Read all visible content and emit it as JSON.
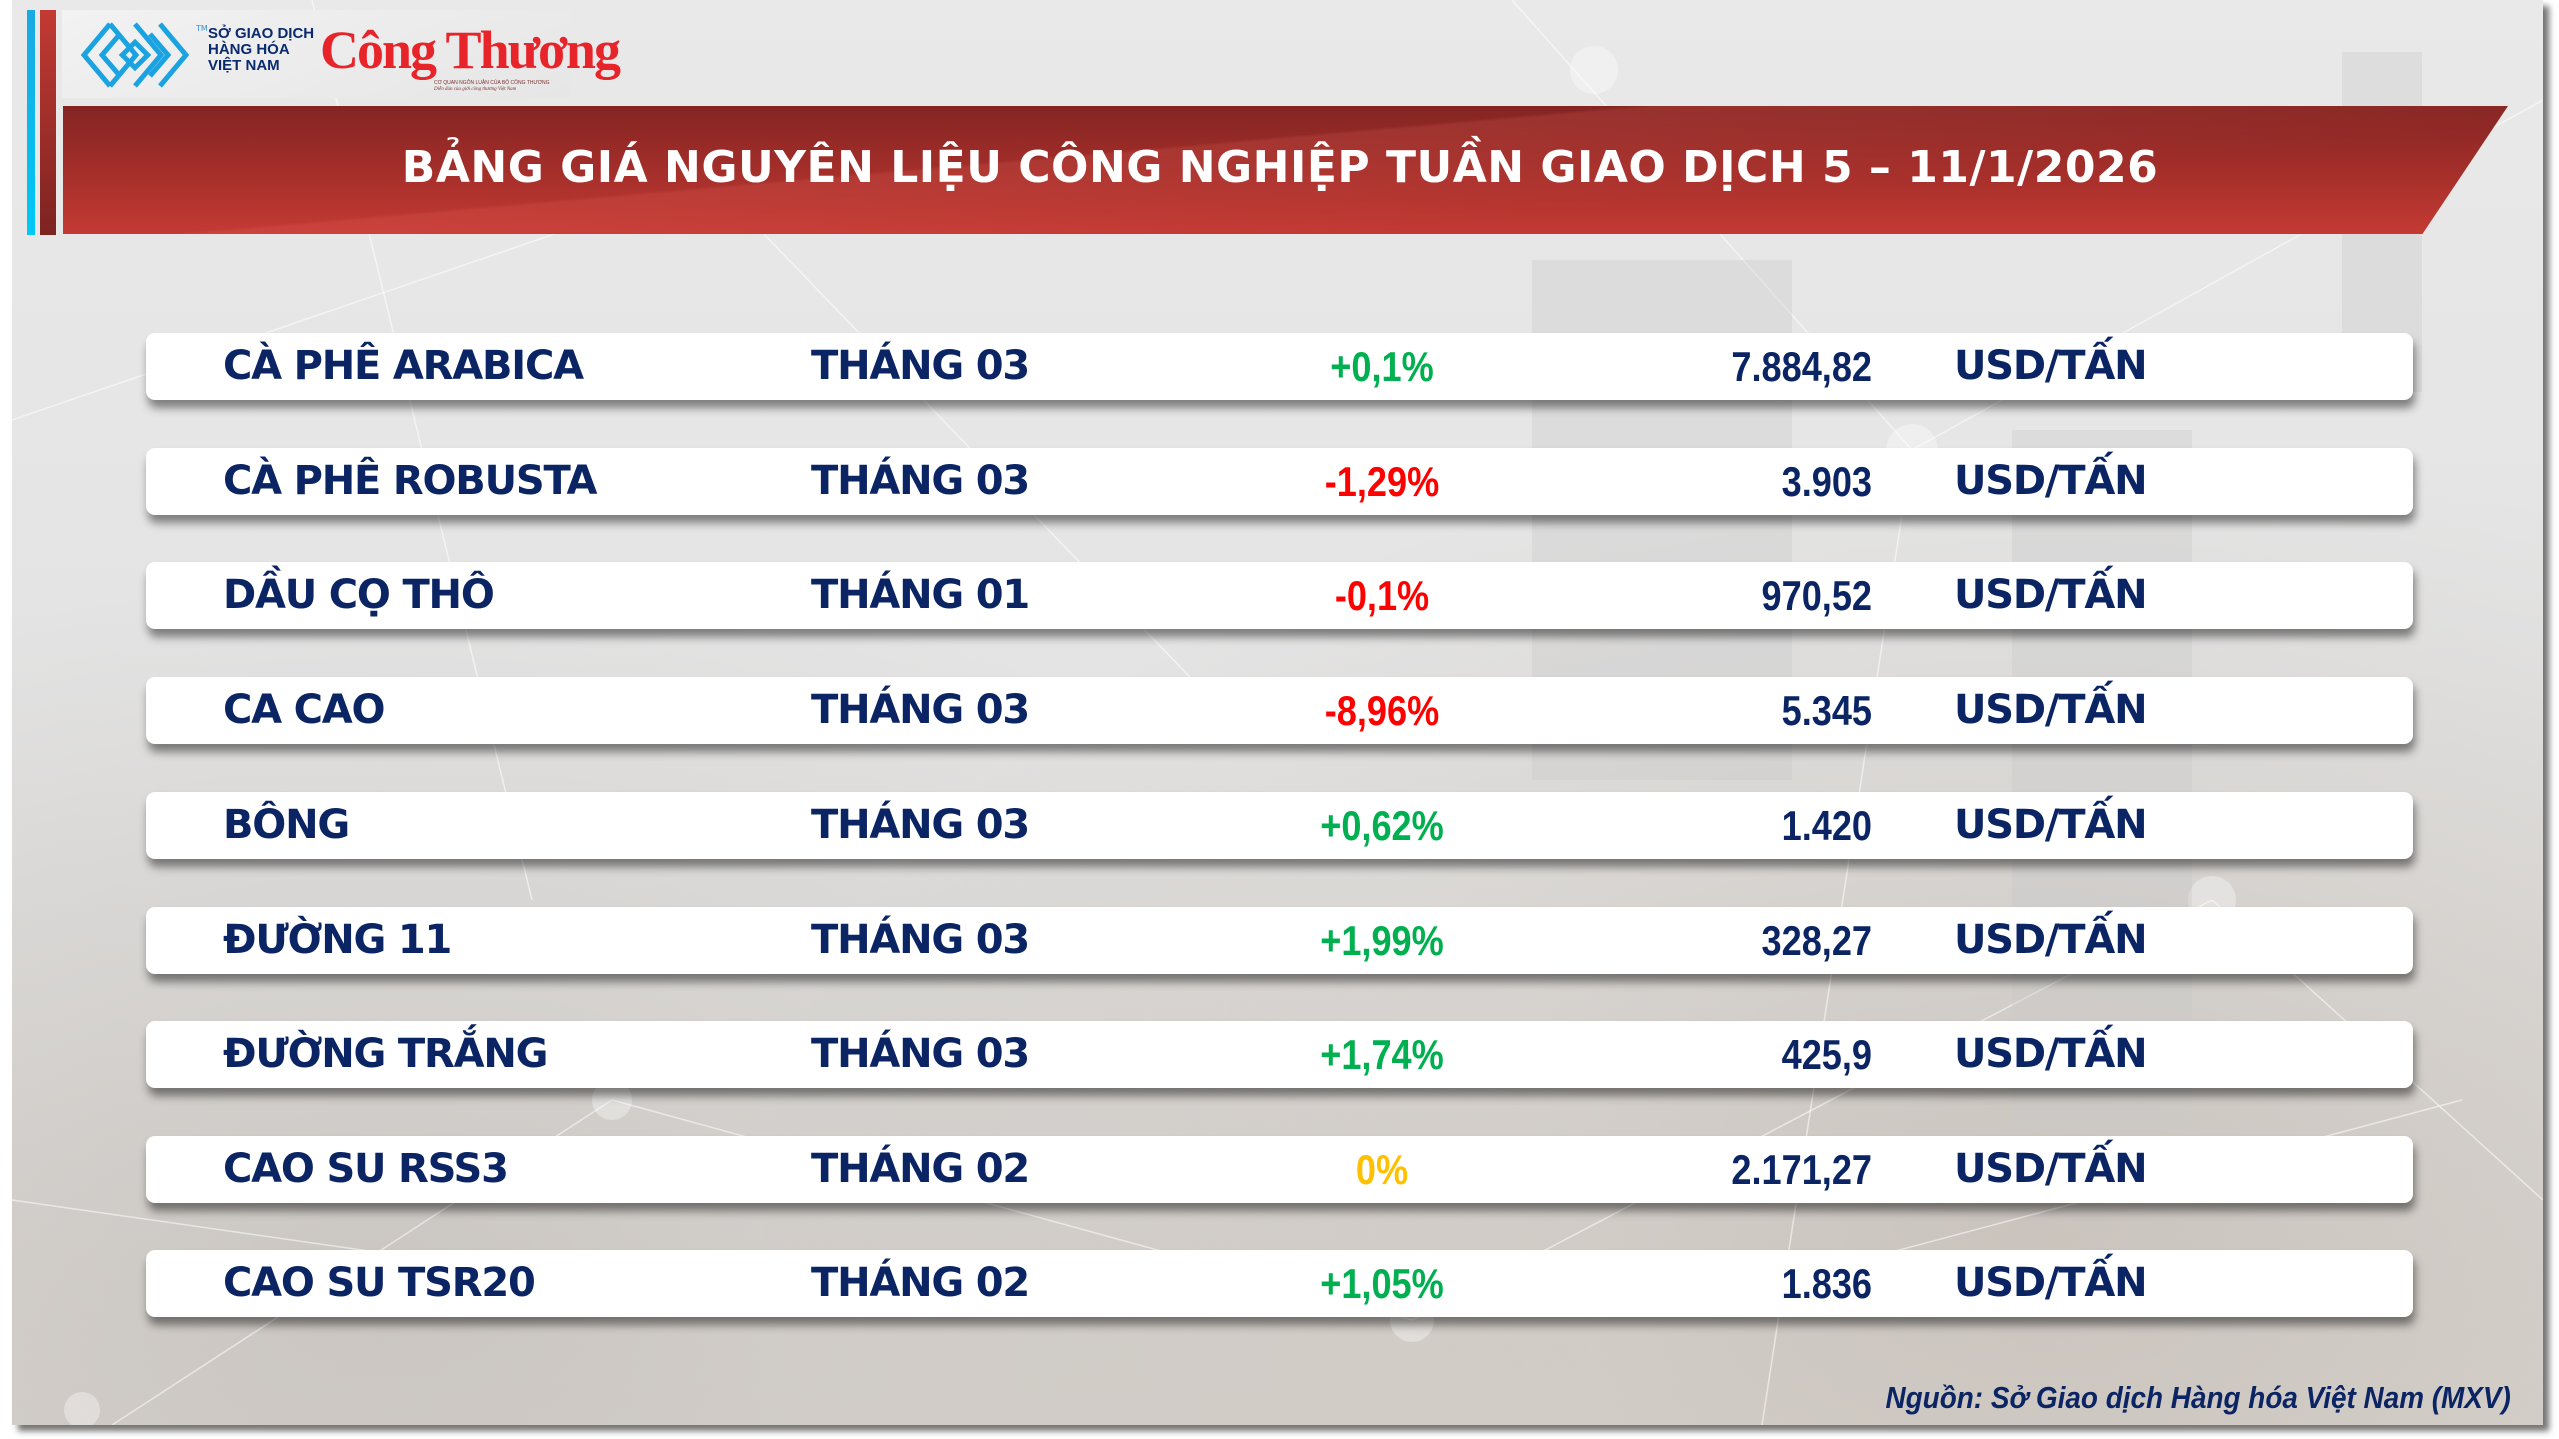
{
  "header": {
    "logo_mxv": {
      "icon": "mxv-diamond-logo-icon",
      "trademark": "TM",
      "lines": [
        "SỞ GIAO DỊCH",
        "HÀNG HÓA",
        "VIỆT NAM"
      ]
    },
    "logo_congthuong": {
      "name": "Công Thương",
      "tagline_1": "CƠ QUAN NGÔN LUẬN CỦA BỘ CÔNG THƯƠNG",
      "tagline_2": "Diễn đàn của giới công thương Việt Nam"
    },
    "title": "BẢNG GIÁ NGUYÊN LIỆU CÔNG NGHIỆP TUẦN GIAO DỊCH 5 – 11/1/2026"
  },
  "colors": {
    "navy_text": "#0b2463",
    "up": "#00b050",
    "down": "#ff0000",
    "flat": "#ffc000",
    "banner_top": "#842522",
    "banner_bottom": "#c43a33",
    "accent_blue": "#00c8f5"
  },
  "table": {
    "rows": [
      {
        "commodity": "CÀ PHÊ ARABICA",
        "contract": "THÁNG 03",
        "change": "+0,1%",
        "direction": "up",
        "price": "7.884,82",
        "unit": "USD/TẤN"
      },
      {
        "commodity": "CÀ PHÊ ROBUSTA",
        "contract": "THÁNG 03",
        "change": "-1,29%",
        "direction": "down",
        "price": "3.903",
        "unit": "USD/TẤN"
      },
      {
        "commodity": "DẦU CỌ THÔ",
        "contract": "THÁNG 01",
        "change": "-0,1%",
        "direction": "down",
        "price": "970,52",
        "unit": "USD/TẤN"
      },
      {
        "commodity": "CA CAO",
        "contract": "THÁNG 03",
        "change": "-8,96%",
        "direction": "down",
        "price": "5.345",
        "unit": "USD/TẤN"
      },
      {
        "commodity": "BÔNG",
        "contract": "THÁNG 03",
        "change": "+0,62%",
        "direction": "up",
        "price": "1.420",
        "unit": "USD/TẤN"
      },
      {
        "commodity": "ĐƯỜNG 11",
        "contract": "THÁNG 03",
        "change": "+1,99%",
        "direction": "up",
        "price": "328,27",
        "unit": "USD/TẤN"
      },
      {
        "commodity": "ĐƯỜNG TRẮNG",
        "contract": "THÁNG 03",
        "change": "+1,74%",
        "direction": "up",
        "price": "425,9",
        "unit": "USD/TẤN"
      },
      {
        "commodity": "CAO SU RSS3",
        "contract": "THÁNG 02",
        "change": "0%",
        "direction": "flat",
        "price": "2.171,27",
        "unit": "USD/TẤN"
      },
      {
        "commodity": "CAO SU TSR20",
        "contract": "THÁNG 02",
        "change": "+1,05%",
        "direction": "up",
        "price": "1.836",
        "unit": "USD/TẤN"
      }
    ]
  },
  "footer": {
    "source": "Nguồn: Sở Giao dịch Hàng hóa Việt Nam (MXV)"
  }
}
